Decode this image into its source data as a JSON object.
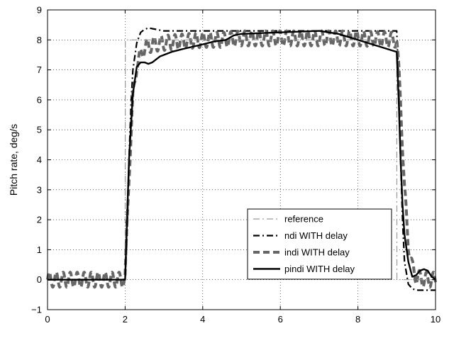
{
  "chart_data": {
    "type": "line",
    "title": "",
    "xlabel": "",
    "ylabel": "Pitch rate, deg/s",
    "xlim": [
      0,
      10
    ],
    "ylim": [
      -1,
      9
    ],
    "xticks": [
      "0",
      "2",
      "4",
      "6",
      "8",
      "10"
    ],
    "yticks": [
      "−1",
      "0",
      "1",
      "2",
      "3",
      "4",
      "5",
      "6",
      "7",
      "8",
      "9"
    ],
    "grid": true,
    "legend_position": "bottom-right",
    "series": [
      {
        "name": "reference",
        "style": "dash-dot",
        "color": "#999999",
        "x": [
          0,
          2,
          2.005,
          9,
          9.005,
          10
        ],
        "y": [
          0,
          0,
          8,
          8,
          0,
          0
        ]
      },
      {
        "name": "ndi WITH delay",
        "style": "dash-dot",
        "color": "#000000",
        "x": [
          0,
          2.0,
          2.05,
          2.1,
          2.15,
          2.2,
          2.3,
          2.4,
          2.5,
          2.6,
          2.8,
          3.0,
          3.5,
          4.0,
          5.0,
          7.0,
          8.5,
          9.0,
          9.05,
          9.1,
          9.15,
          9.2,
          9.3,
          9.4,
          9.5,
          9.7,
          10.0
        ],
        "y": [
          0,
          0,
          1.5,
          4.0,
          5.8,
          7.0,
          7.9,
          8.25,
          8.35,
          8.4,
          8.35,
          8.3,
          8.3,
          8.3,
          8.3,
          8.3,
          8.3,
          8.3,
          6.5,
          4.0,
          2.0,
          0.6,
          -0.15,
          -0.3,
          -0.35,
          -0.35,
          -0.35
        ]
      },
      {
        "name": "indi WITH delay",
        "style": "dashed",
        "color": "#666666",
        "oscillation": {
          "amplitude": 0.25,
          "period": 0.18
        },
        "x": [
          0,
          2.0,
          2.1,
          2.2,
          2.3,
          2.5,
          2.7,
          3.0,
          3.5,
          4.0,
          4.5,
          5.0,
          6.0,
          7.0,
          8.0,
          9.0,
          9.1,
          9.2,
          9.3,
          9.4,
          9.5,
          9.7,
          10.0
        ],
        "y": [
          0,
          0,
          3.5,
          6.0,
          7.2,
          7.75,
          7.85,
          7.9,
          7.95,
          8.0,
          8.0,
          8.05,
          8.05,
          8.05,
          8.05,
          8.0,
          6.0,
          3.0,
          1.2,
          0.4,
          0.1,
          0.0,
          0.0
        ]
      },
      {
        "name": "pindi WITH delay",
        "style": "solid",
        "color": "#000000",
        "x": [
          0,
          2.0,
          2.05,
          2.1,
          2.2,
          2.3,
          2.4,
          2.5,
          2.6,
          2.7,
          2.8,
          2.9,
          3.0,
          3.2,
          3.5,
          4.0,
          4.3,
          4.6,
          4.8,
          5.0,
          6.0,
          7.0,
          7.5,
          8.0,
          8.5,
          9.0,
          9.05,
          9.1,
          9.15,
          9.2,
          9.3,
          9.4,
          9.5,
          9.6,
          9.7,
          9.8,
          9.9,
          10.0
        ],
        "y": [
          0,
          0,
          2.0,
          4.0,
          6.2,
          7.1,
          7.25,
          7.25,
          7.2,
          7.25,
          7.35,
          7.45,
          7.5,
          7.6,
          7.7,
          7.85,
          7.95,
          8.0,
          8.15,
          8.2,
          8.25,
          8.3,
          8.2,
          8.0,
          7.8,
          7.6,
          6.0,
          4.0,
          2.5,
          1.5,
          0.6,
          0.1,
          0.15,
          0.3,
          0.35,
          0.3,
          0.1,
          0.0
        ]
      }
    ]
  }
}
